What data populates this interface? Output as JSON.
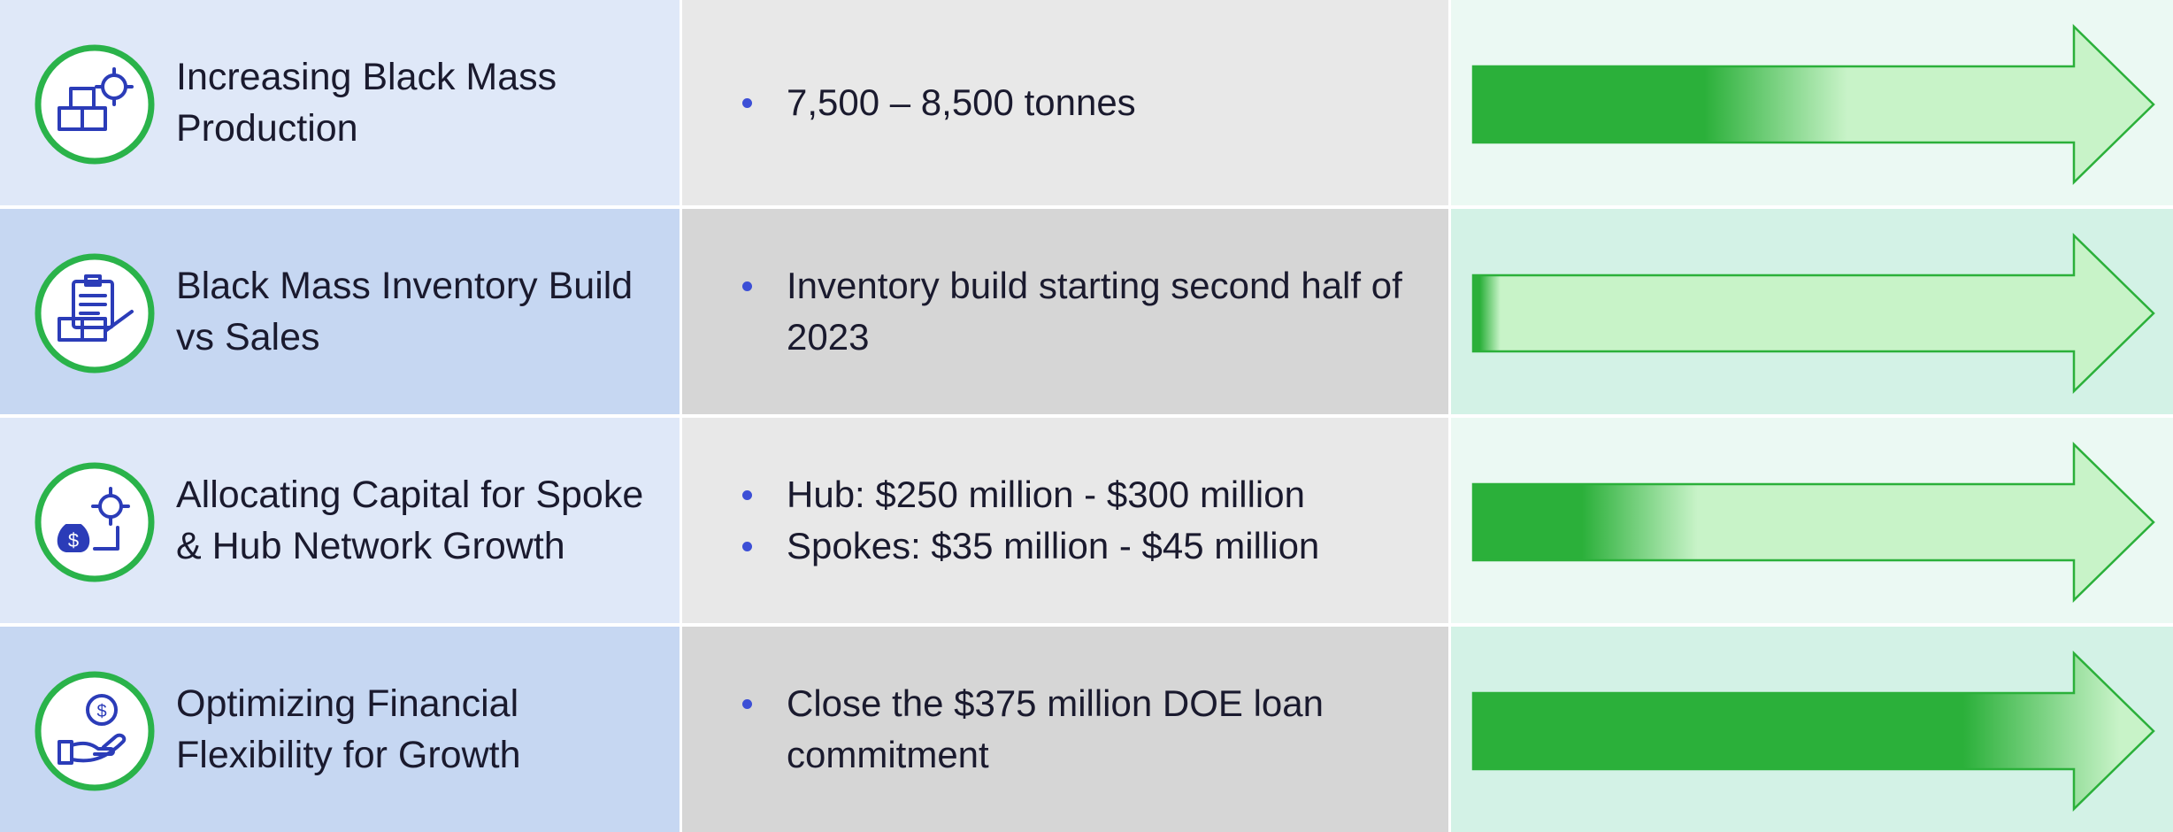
{
  "rows": [
    {
      "title": "Increasing Black Mass Production",
      "bullets": [
        "7,500 – 8,500 tonnes"
      ]
    },
    {
      "title": "Black Mass Inventory Build vs Sales",
      "bullets": [
        "Inventory build starting second half of 2023"
      ]
    },
    {
      "title": "Allocating Capital for Spoke & Hub Network Growth",
      "bullets": [
        "Hub: $250 million - $300 million",
        "Spokes: $35 million - $45 million"
      ]
    },
    {
      "title": "Optimizing Financial Flexibility for Growth",
      "bullets": [
        "Close the $375 million DOE loan commitment"
      ]
    }
  ]
}
